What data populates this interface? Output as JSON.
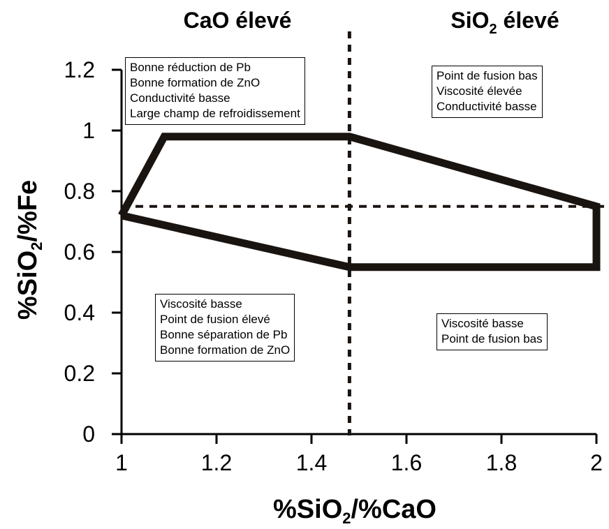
{
  "chart_data": {
    "type": "line",
    "xlabel": {
      "prefix": "%SiO",
      "sub": "2",
      "suffix": "/%CaO"
    },
    "ylabel": {
      "prefix": "%SiO",
      "sub": "2",
      "suffix": "/%Fe"
    },
    "xlim": [
      1,
      2
    ],
    "ylim": [
      0,
      1.2
    ],
    "xticks": [
      "1",
      "1.2",
      "1.4",
      "1.6",
      "1.8",
      "2"
    ],
    "yticks": [
      "0",
      "0.2",
      "0.4",
      "0.6",
      "0.8",
      "1",
      "1.2"
    ],
    "xtick_values": [
      1,
      1.2,
      1.4,
      1.6,
      1.8,
      2
    ],
    "ytick_values": [
      0,
      0.2,
      0.4,
      0.6,
      0.8,
      1.0,
      1.2
    ],
    "grid": false,
    "region_titles": {
      "left": {
        "text": "CaO élevé"
      },
      "right": {
        "prefix": "SiO",
        "sub": "2",
        "suffix": " élevé"
      }
    },
    "operating_window": {
      "x": [
        1.0,
        1.09,
        1.48,
        2.0,
        2.0,
        1.48,
        1.0
      ],
      "y": [
        0.72,
        0.98,
        0.98,
        0.75,
        0.55,
        0.55,
        0.72
      ],
      "color": "#1a1411"
    },
    "reference_lines": {
      "vertical_x": 1.48,
      "horizontal_y": 0.75,
      "color": "#1a1411"
    },
    "annotations": [
      {
        "id": "top-left",
        "lines": [
          "Bonne réduction de Pb",
          "Bonne formation de ZnO",
          "Conductivité basse",
          "Large champ de refroidissement"
        ]
      },
      {
        "id": "top-right",
        "lines": [
          "Point de fusion bas",
          "Viscosité élevée",
          "Conductivité basse"
        ]
      },
      {
        "id": "bottom-left",
        "lines": [
          "Viscosité basse",
          "Point de fusion élevé",
          "Bonne séparation de Pb",
          "Bonne formation de ZnO"
        ]
      },
      {
        "id": "bottom-right",
        "lines": [
          "Viscosité basse",
          "Point de fusion bas"
        ]
      }
    ]
  }
}
